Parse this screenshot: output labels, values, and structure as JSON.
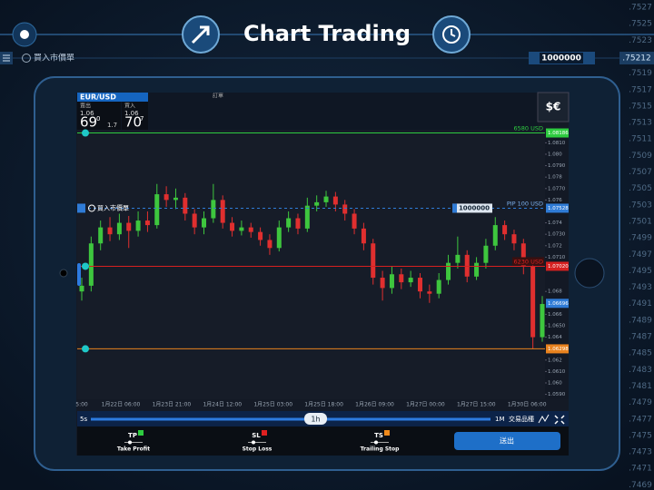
{
  "header": {
    "title": "Chart Trading"
  },
  "order_bar": {
    "label": "買入市價單",
    "amount": "1000000",
    "price": ".75212"
  },
  "ruler": [
    ".7527",
    ".7525",
    ".7523",
    ".7519",
    ".7517",
    ".7515",
    ".7513",
    ".7511",
    ".7509",
    ".7507",
    ".7505",
    ".7503",
    ".7501",
    ".7499",
    ".7497",
    ".7495",
    ".7493",
    ".7491",
    ".7489",
    ".7487",
    ".7485",
    ".7483",
    ".7481",
    ".7479",
    ".7477",
    ".7475",
    ".7473",
    ".7471",
    ".7469"
  ],
  "panel": {
    "symbol": "EUR/USD",
    "sell": {
      "label": "賣出",
      "big": "1.06",
      "pips": "69",
      "frac": "0"
    },
    "spread": "1.7",
    "buy": {
      "label": "買入",
      "big": "1.06",
      "pips": "70",
      "frac": "7"
    },
    "orders": "訂單",
    "currency_icon": "$€"
  },
  "chart": {
    "type": "candlestick",
    "ylim": [
      1.05857,
      1.08214
    ],
    "yticks": [
      {
        "value": 1.081,
        "label": "1.0810"
      },
      {
        "value": 1.08,
        "label": "1.080"
      },
      {
        "value": 1.079,
        "label": "1.0790"
      },
      1.078,
      {
        "value": 1.077,
        "label": "1.0770"
      },
      1.076,
      1.074,
      {
        "value": 1.073,
        "label": "1.0730"
      },
      1.072,
      {
        "value": 1.071,
        "label": "1.0710"
      },
      1.068,
      1.066,
      {
        "value": 1.065,
        "label": "1.0650"
      },
      1.064,
      1.062,
      {
        "value": 1.061,
        "label": "1.0610"
      },
      {
        "value": 1.06,
        "label": "1.060"
      },
      {
        "value": 1.059,
        "label": "1.0590"
      }
    ],
    "up_color": "#3ec63e",
    "down_color": "#e02f2f",
    "candles": [
      [
        1.068,
        1.0692,
        1.0672,
        1.0685
      ],
      [
        1.0685,
        1.0728,
        1.068,
        1.0722
      ],
      [
        1.0722,
        1.0742,
        1.0716,
        1.0736
      ],
      [
        1.0736,
        1.0745,
        1.0724,
        1.073
      ],
      [
        1.073,
        1.0748,
        1.0725,
        1.074
      ],
      [
        1.074,
        1.0746,
        1.0718,
        1.0733
      ],
      [
        1.0733,
        1.075,
        1.0728,
        1.0742
      ],
      [
        1.0742,
        1.075,
        1.0732,
        1.0738
      ],
      [
        1.0738,
        1.0774,
        1.0735,
        1.0765
      ],
      [
        1.0765,
        1.0772,
        1.0754,
        1.076
      ],
      [
        1.076,
        1.077,
        1.0752,
        1.0762
      ],
      [
        1.0762,
        1.0766,
        1.0742,
        1.0748
      ],
      [
        1.0748,
        1.0752,
        1.073,
        1.0736
      ],
      [
        1.0736,
        1.075,
        1.073,
        1.0744
      ],
      [
        1.0744,
        1.0774,
        1.074,
        1.076
      ],
      [
        1.076,
        1.0764,
        1.0735,
        1.074
      ],
      [
        1.074,
        1.0745,
        1.0728,
        1.0733
      ],
      [
        1.0733,
        1.0742,
        1.0729,
        1.0736
      ],
      [
        1.0736,
        1.074,
        1.0727,
        1.0732
      ],
      [
        1.0732,
        1.0736,
        1.072,
        1.0725
      ],
      [
        1.0725,
        1.073,
        1.0712,
        1.0718
      ],
      [
        1.0718,
        1.0742,
        1.0715,
        1.0736
      ],
      [
        1.0736,
        1.075,
        1.0732,
        1.0744
      ],
      [
        1.0744,
        1.0748,
        1.073,
        1.0735
      ],
      [
        1.0735,
        1.0762,
        1.0732,
        1.0755
      ],
      [
        1.0755,
        1.0764,
        1.075,
        1.0758
      ],
      [
        1.0758,
        1.0768,
        1.0754,
        1.0763
      ],
      [
        1.0763,
        1.0767,
        1.075,
        1.0756
      ],
      [
        1.0756,
        1.076,
        1.0742,
        1.0748
      ],
      [
        1.0748,
        1.0752,
        1.073,
        1.0735
      ],
      [
        1.0735,
        1.074,
        1.0716,
        1.0722
      ],
      [
        1.0722,
        1.0726,
        1.0686,
        1.0692
      ],
      [
        1.0692,
        1.0698,
        1.0672,
        1.0683
      ],
      [
        1.0683,
        1.0702,
        1.0678,
        1.0695
      ],
      [
        1.0695,
        1.07,
        1.0682,
        1.0688
      ],
      [
        1.0688,
        1.0698,
        1.0684,
        1.0692
      ],
      [
        1.0692,
        1.0696,
        1.0674,
        1.068
      ],
      [
        1.068,
        1.0686,
        1.067,
        1.0678
      ],
      [
        1.0678,
        1.0696,
        1.0674,
        1.069
      ],
      [
        1.069,
        1.0712,
        1.0686,
        1.0705
      ],
      [
        1.0705,
        1.0728,
        1.07,
        1.0712
      ],
      [
        1.0712,
        1.0716,
        1.0688,
        1.0693
      ],
      [
        1.0693,
        1.071,
        1.069,
        1.0705
      ],
      [
        1.0705,
        1.0726,
        1.07,
        1.072
      ],
      [
        1.072,
        1.0745,
        1.0716,
        1.0738
      ],
      [
        1.0738,
        1.0742,
        1.0725,
        1.073
      ],
      [
        1.073,
        1.0734,
        1.0716,
        1.0722
      ],
      [
        1.0722,
        1.0726,
        1.0695,
        1.0702
      ],
      [
        1.0702,
        1.0706,
        1.063,
        1.064
      ],
      [
        1.064,
        1.0676,
        1.0636,
        1.0669
      ]
    ],
    "x_labels": [
      "5:00",
      "1月22日 06:00",
      "1月23日 21:00",
      "1月24日 12:00",
      "1月25日 03:00",
      "1月25日 18:00",
      "1月26日 09:00",
      "1月27日 00:00",
      "1月27日 15:00",
      "1月30日 06:00"
    ],
    "levels": [
      {
        "value": 1.08186,
        "color": "#2ecc40",
        "tag": "6580 USD",
        "line": true,
        "dashed": false,
        "handle": true
      },
      {
        "value": 1.07528,
        "color": "#2f7bd6",
        "tag": "PIP 100 USD",
        "amount": "1000000",
        "order": "買入市價單",
        "line": true,
        "dashed": true,
        "handle": false
      },
      {
        "value": 1.0702,
        "label": "1.07020",
        "color": "#d62020",
        "tag": "6230 USD",
        "line": true,
        "dashed": false,
        "handle": true
      },
      {
        "value": 1.06696,
        "color": "#2f7bd6",
        "line": false,
        "dashed": false,
        "handle": false
      },
      {
        "value": 1.06298,
        "color": "#e8821e",
        "line": true,
        "dashed": false,
        "handle": true
      }
    ]
  },
  "timeframe": {
    "min": "5s",
    "current": "1h",
    "max": "1M",
    "instruments": "交易品種"
  },
  "bottom": {
    "tp": {
      "code": "TP",
      "label": "Take Profit",
      "color": "#2ecc40"
    },
    "sl": {
      "code": "SL",
      "label": "Stop Loss",
      "color": "#e02020"
    },
    "ts": {
      "code": "TS",
      "label": "Trailing Stop",
      "color": "#f08a1c"
    },
    "submit": "送出"
  }
}
